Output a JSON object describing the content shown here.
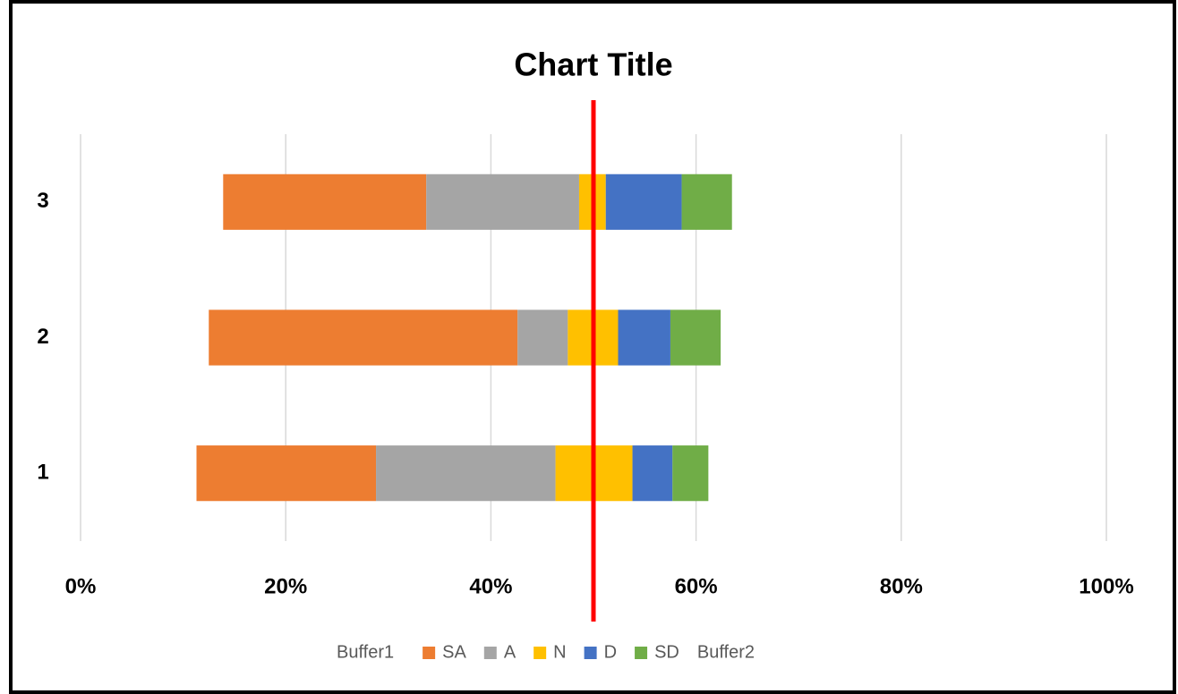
{
  "chart_data": {
    "type": "stacked_barh",
    "title": "Chart Title",
    "categories": [
      "1",
      "2",
      "3"
    ],
    "series": [
      {
        "name": "Buffer1",
        "color": "none",
        "values": [
          11.3,
          12.5,
          13.9
        ]
      },
      {
        "name": "SA",
        "color": "#ed7d31",
        "values": [
          17.5,
          30.1,
          19.8
        ]
      },
      {
        "name": "A",
        "color": "#a5a5a5",
        "values": [
          17.5,
          4.9,
          14.9
        ]
      },
      {
        "name": "N",
        "color": "#ffc000",
        "values": [
          7.5,
          4.9,
          2.6
        ]
      },
      {
        "name": "D",
        "color": "#4472c4",
        "values": [
          3.9,
          5.1,
          7.4
        ]
      },
      {
        "name": "SD",
        "color": "#70ad47",
        "values": [
          3.5,
          4.9,
          4.9
        ]
      },
      {
        "name": "Buffer2",
        "color": "none",
        "values": [
          38.8,
          37.6,
          36.5
        ]
      }
    ],
    "xlim": [
      0,
      100
    ],
    "xticks": [
      {
        "value": 0,
        "label": "0%"
      },
      {
        "value": 20,
        "label": "20%"
      },
      {
        "value": 40,
        "label": "40%"
      },
      {
        "value": 60,
        "label": "60%"
      },
      {
        "value": 80,
        "label": "80%"
      },
      {
        "value": 100,
        "label": "100%"
      }
    ],
    "grid": true,
    "legend": "bottom",
    "reference_line": {
      "value": 50,
      "color": "#ff0000"
    }
  }
}
